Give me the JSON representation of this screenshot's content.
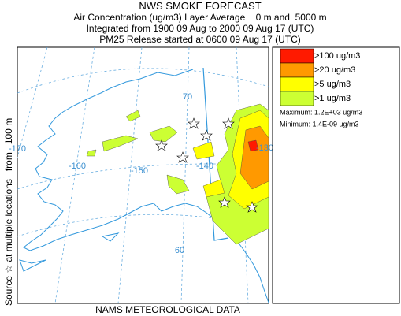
{
  "header": {
    "title": "NWS SMOKE FORECAST",
    "line1": "Air Concentration (ug/m3) Layer Average    0 m and  5000 m",
    "line2": "Integrated from 1900 09 Aug to 2000 09 Aug 17 (UTC)",
    "line3": "PM25 Release started at 0600 09 Aug 17 (UTC)"
  },
  "side_label": "Source ☆ at multiple locations   from   100 m",
  "footer": "NAMS METEOROLOGICAL DATA",
  "map": {
    "grid_labels": [
      "70",
      "-170",
      "-160",
      "-150",
      "-140",
      "-130",
      "60"
    ]
  },
  "legend": {
    "items": [
      {
        "label": ">100 ug/m3",
        "color": "#ff1a00"
      },
      {
        "label": ">20 ug/m3",
        "color": "#ff9900"
      },
      {
        "label": ">5 ug/m3",
        "color": "#ffff00"
      },
      {
        "label": ">1 ug/m3",
        "color": "#ccff33"
      }
    ],
    "maximum": "Maximum: 1.2E+03 ug/m3",
    "minimum": "Minimum: 1.4E-09 ug/m3"
  }
}
